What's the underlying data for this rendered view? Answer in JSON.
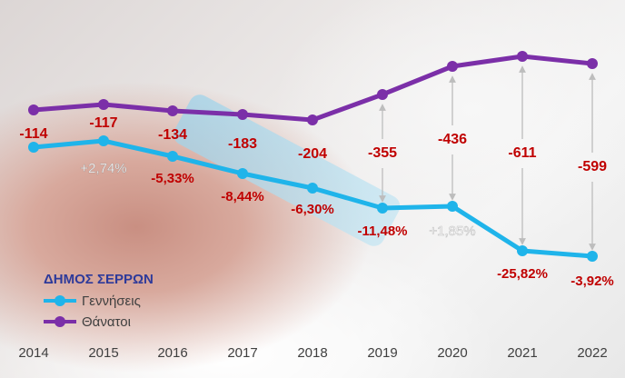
{
  "chart_data": {
    "type": "line",
    "categories": [
      "2014",
      "2015",
      "2016",
      "2017",
      "2018",
      "2019",
      "2020",
      "2021",
      "2022"
    ],
    "series": [
      {
        "name": "Γεννήσεις",
        "color": "#1fb4ea"
      },
      {
        "name": "Θάνατοι",
        "color": "#7b2fa8"
      }
    ],
    "difference_labels": [
      "-114",
      "-117",
      "-134",
      "-183",
      "-204",
      "-355",
      "-436",
      "-611",
      "-599"
    ],
    "change_labels": [
      "",
      "+2,74%",
      "-5,33%",
      "-8,44%",
      "-6,30%",
      "-11,48%",
      "+1,85%",
      "-25,82%",
      "-3,92%"
    ],
    "legend_title": "ΔΗΜΟΣ ΣΕΡΡΩΝ",
    "colors": {
      "negative_label": "#c00000",
      "positive_label": "#ffffff",
      "arrow": "#bdbdbd",
      "axis_text": "#404040",
      "legend_title": "#2e3a9a"
    }
  }
}
